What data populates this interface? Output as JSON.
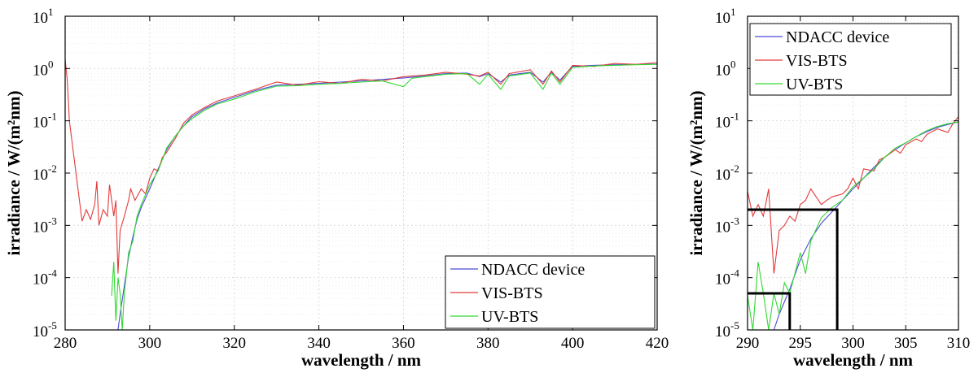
{
  "chart_data": [
    {
      "type": "line",
      "xlabel": "wavelength / nm",
      "ylabel": "irradiance / W/(m²nm)",
      "xlim": [
        280,
        420
      ],
      "ylim_exp": [
        -5,
        1
      ],
      "y_scale": "log",
      "x_ticks": [
        "280",
        "300",
        "320",
        "340",
        "360",
        "380",
        "400",
        "420"
      ],
      "y_ticks": [
        {
          "base": "10",
          "exp": "-5"
        },
        {
          "base": "10",
          "exp": "-4"
        },
        {
          "base": "10",
          "exp": "-3"
        },
        {
          "base": "10",
          "exp": "-2"
        },
        {
          "base": "10",
          "exp": "-1"
        },
        {
          "base": "10",
          "exp": "0"
        },
        {
          "base": "10",
          "exp": "1"
        }
      ],
      "grid": true,
      "legend_position": "bottom-right",
      "series": [
        {
          "name": "NDACC device",
          "color": "#4b4bd8",
          "points": [
            [
              292.5,
              1e-05
            ],
            [
              293,
              2e-05
            ],
            [
              294,
              7e-05
            ],
            [
              295,
              0.00025
            ],
            [
              296,
              0.0006
            ],
            [
              297,
              0.0013
            ],
            [
              298,
              0.0022
            ],
            [
              300,
              0.005
            ],
            [
              302,
              0.012
            ],
            [
              304,
              0.028
            ],
            [
              306,
              0.05
            ],
            [
              308,
              0.08
            ],
            [
              310,
              0.12
            ],
            [
              313,
              0.17
            ],
            [
              316,
              0.22
            ],
            [
              320,
              0.28
            ],
            [
              325,
              0.38
            ],
            [
              330,
              0.48
            ],
            [
              335,
              0.5
            ],
            [
              340,
              0.52
            ],
            [
              345,
              0.55
            ],
            [
              350,
              0.58
            ],
            [
              355,
              0.62
            ],
            [
              360,
              0.66
            ],
            [
              365,
              0.72
            ],
            [
              370,
              0.8
            ],
            [
              375,
              0.82
            ],
            [
              378,
              0.7
            ],
            [
              380,
              0.8
            ],
            [
              383,
              0.55
            ],
            [
              385,
              0.75
            ],
            [
              390,
              0.85
            ],
            [
              393,
              0.55
            ],
            [
              395,
              0.85
            ],
            [
              397,
              0.6
            ],
            [
              400,
              1.1
            ],
            [
              405,
              1.15
            ],
            [
              410,
              1.18
            ],
            [
              415,
              1.2
            ],
            [
              420,
              1.22
            ]
          ]
        },
        {
          "name": "VIS-BTS",
          "color": "#e23b3b",
          "points": [
            [
              280,
              1.5
            ],
            [
              280.5,
              0.6
            ],
            [
              281,
              0.1
            ],
            [
              283.5,
              0.0025
            ],
            [
              284,
              0.0012
            ],
            [
              285,
              0.002
            ],
            [
              286,
              0.0013
            ],
            [
              287,
              0.0025
            ],
            [
              287.5,
              0.007
            ],
            [
              288,
              0.001
            ],
            [
              289,
              0.002
            ],
            [
              290,
              0.0015
            ],
            [
              290.5,
              0.006
            ],
            [
              291,
              0.003
            ],
            [
              291.5,
              0.0015
            ],
            [
              292,
              0.003
            ],
            [
              292.5,
              0.00012
            ],
            [
              293,
              0.0008
            ],
            [
              294,
              0.0015
            ],
            [
              295,
              0.003
            ],
            [
              295.5,
              0.005
            ],
            [
              296.5,
              0.003
            ],
            [
              298,
              0.005
            ],
            [
              299,
              0.004
            ],
            [
              300,
              0.008
            ],
            [
              301,
              0.012
            ],
            [
              302,
              0.011
            ],
            [
              303,
              0.02
            ],
            [
              304,
              0.025
            ],
            [
              306,
              0.045
            ],
            [
              308,
              0.09
            ],
            [
              310,
              0.13
            ],
            [
              313,
              0.18
            ],
            [
              316,
              0.24
            ],
            [
              320,
              0.3
            ],
            [
              325,
              0.4
            ],
            [
              330,
              0.55
            ],
            [
              335,
              0.48
            ],
            [
              340,
              0.56
            ],
            [
              345,
              0.52
            ],
            [
              350,
              0.62
            ],
            [
              355,
              0.58
            ],
            [
              360,
              0.7
            ],
            [
              365,
              0.75
            ],
            [
              370,
              0.85
            ],
            [
              375,
              0.78
            ],
            [
              378,
              0.72
            ],
            [
              380,
              0.85
            ],
            [
              383,
              0.5
            ],
            [
              385,
              0.8
            ],
            [
              390,
              0.95
            ],
            [
              393,
              0.5
            ],
            [
              395,
              0.9
            ],
            [
              397,
              0.55
            ],
            [
              400,
              1.15
            ],
            [
              405,
              1.1
            ],
            [
              410,
              1.25
            ],
            [
              415,
              1.2
            ],
            [
              420,
              1.3
            ]
          ]
        },
        {
          "name": "UV-BTS",
          "color": "#32d932",
          "points": [
            [
              291,
              4.5e-05
            ],
            [
              291.5,
              0.0002
            ],
            [
              292,
              1.5e-05
            ],
            [
              292.5,
              0.0001
            ],
            [
              293,
              5e-05
            ],
            [
              293.5,
              1e-05
            ],
            [
              294,
              5e-05
            ],
            [
              295,
              0.0003
            ],
            [
              296,
              0.0005
            ],
            [
              297,
              0.0015
            ],
            [
              298,
              0.0025
            ],
            [
              300,
              0.006
            ],
            [
              302,
              0.011
            ],
            [
              304,
              0.03
            ],
            [
              306,
              0.05
            ],
            [
              308,
              0.08
            ],
            [
              310,
              0.11
            ],
            [
              313,
              0.16
            ],
            [
              316,
              0.21
            ],
            [
              320,
              0.26
            ],
            [
              325,
              0.36
            ],
            [
              330,
              0.46
            ],
            [
              335,
              0.47
            ],
            [
              340,
              0.5
            ],
            [
              345,
              0.52
            ],
            [
              350,
              0.55
            ],
            [
              355,
              0.58
            ],
            [
              360,
              0.45
            ],
            [
              362,
              0.65
            ],
            [
              365,
              0.7
            ],
            [
              370,
              0.78
            ],
            [
              375,
              0.8
            ],
            [
              378,
              0.5
            ],
            [
              380,
              0.78
            ],
            [
              383,
              0.4
            ],
            [
              385,
              0.72
            ],
            [
              390,
              0.82
            ],
            [
              393,
              0.4
            ],
            [
              395,
              0.82
            ],
            [
              397,
              0.5
            ],
            [
              400,
              1.05
            ],
            [
              405,
              1.12
            ],
            [
              410,
              1.15
            ],
            [
              415,
              1.18
            ],
            [
              420,
              1.2
            ]
          ]
        }
      ]
    },
    {
      "type": "line",
      "xlabel": "wavelength / nm",
      "ylabel": "irradiance / W/(m²nm)",
      "xlim": [
        290,
        310
      ],
      "ylim_exp": [
        -5,
        1
      ],
      "y_scale": "log",
      "x_ticks": [
        "290",
        "295",
        "300",
        "305",
        "310"
      ],
      "y_ticks": [
        {
          "base": "10",
          "exp": "-5"
        },
        {
          "base": "10",
          "exp": "-4"
        },
        {
          "base": "10",
          "exp": "-3"
        },
        {
          "base": "10",
          "exp": "-2"
        },
        {
          "base": "10",
          "exp": "-1"
        },
        {
          "base": "10",
          "exp": "0"
        },
        {
          "base": "10",
          "exp": "1"
        }
      ],
      "grid": true,
      "legend_position": "top-left",
      "annotations": [
        {
          "type": "threshold",
          "x": 298.5,
          "y": 0.002,
          "color": "#000000"
        },
        {
          "type": "threshold",
          "x": 294,
          "y": 5e-05,
          "color": "#000000"
        }
      ],
      "series": [
        {
          "name": "NDACC device",
          "color": "#4b4bd8",
          "points": [
            [
              292.5,
              1e-05
            ],
            [
              293,
              2e-05
            ],
            [
              294,
              6e-05
            ],
            [
              295,
              0.00022
            ],
            [
              296,
              0.00055
            ],
            [
              297,
              0.0011
            ],
            [
              298,
              0.0018
            ],
            [
              299,
              0.003
            ],
            [
              300,
              0.005
            ],
            [
              301,
              0.008
            ],
            [
              302,
              0.013
            ],
            [
              303,
              0.02
            ],
            [
              304,
              0.028
            ],
            [
              305,
              0.038
            ],
            [
              306,
              0.05
            ],
            [
              307,
              0.062
            ],
            [
              308,
              0.075
            ],
            [
              309,
              0.085
            ],
            [
              310,
              0.095
            ]
          ]
        },
        {
          "name": "VIS-BTS",
          "color": "#e23b3b",
          "points": [
            [
              290,
              0.0045
            ],
            [
              290.5,
              0.0015
            ],
            [
              291,
              0.0025
            ],
            [
              291.5,
              0.0015
            ],
            [
              292,
              0.005
            ],
            [
              292.5,
              0.00012
            ],
            [
              293,
              0.0008
            ],
            [
              293.5,
              0.001
            ],
            [
              294,
              0.0015
            ],
            [
              294.5,
              0.0012
            ],
            [
              295,
              0.0025
            ],
            [
              295.5,
              0.003
            ],
            [
              296,
              0.005
            ],
            [
              297,
              0.0025
            ],
            [
              297.5,
              0.003
            ],
            [
              298,
              0.0035
            ],
            [
              299,
              0.004
            ],
            [
              299.5,
              0.005
            ],
            [
              300,
              0.008
            ],
            [
              300.5,
              0.005
            ],
            [
              301,
              0.012
            ],
            [
              302,
              0.011
            ],
            [
              302.5,
              0.018
            ],
            [
              303,
              0.02
            ],
            [
              304,
              0.028
            ],
            [
              304.5,
              0.024
            ],
            [
              305,
              0.035
            ],
            [
              306,
              0.045
            ],
            [
              306.5,
              0.04
            ],
            [
              307,
              0.055
            ],
            [
              308,
              0.07
            ],
            [
              309,
              0.06
            ],
            [
              309.5,
              0.09
            ],
            [
              310,
              0.12
            ]
          ]
        },
        {
          "name": "UV-BTS",
          "color": "#32d932",
          "points": [
            [
              290,
              4.5e-05
            ],
            [
              290.5,
              1e-05
            ],
            [
              291,
              0.0002
            ],
            [
              291.5,
              5e-05
            ],
            [
              292,
              1e-05
            ],
            [
              292.5,
              5e-05
            ],
            [
              293,
              2e-05
            ],
            [
              293.5,
              8e-05
            ],
            [
              294,
              5e-05
            ],
            [
              295,
              0.0003
            ],
            [
              295.5,
              0.00012
            ],
            [
              296,
              0.0005
            ],
            [
              297,
              0.0014
            ],
            [
              298,
              0.0022
            ],
            [
              299,
              0.003
            ],
            [
              300,
              0.0055
            ],
            [
              301,
              0.008
            ],
            [
              302,
              0.012
            ],
            [
              303,
              0.02
            ],
            [
              304,
              0.03
            ],
            [
              305,
              0.038
            ],
            [
              306,
              0.05
            ],
            [
              307,
              0.065
            ],
            [
              308,
              0.078
            ],
            [
              309,
              0.088
            ],
            [
              310,
              0.095
            ]
          ]
        }
      ]
    }
  ]
}
